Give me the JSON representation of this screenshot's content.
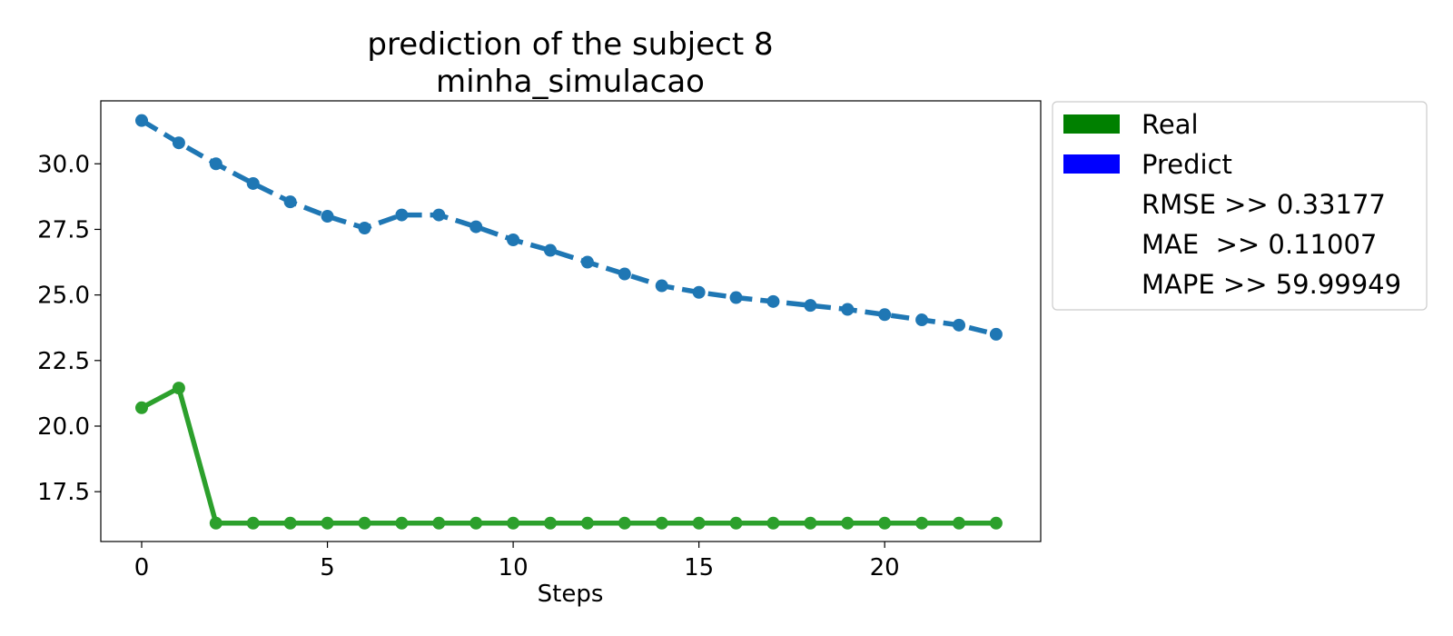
{
  "chart_data": {
    "type": "line",
    "title": "prediction of the subject 8",
    "subtitle": "minha_simulacao",
    "xlabel": "Steps",
    "ylabel": "",
    "xlim": [
      -1.1,
      24.2
    ],
    "ylim": [
      15.6,
      32.4
    ],
    "x_ticks": [
      0,
      5,
      10,
      15,
      20
    ],
    "y_ticks": [
      17.5,
      20.0,
      22.5,
      25.0,
      27.5,
      30.0
    ],
    "y_tick_labels": [
      "17.5",
      "20.0",
      "22.5",
      "25.0",
      "27.5",
      "30.0"
    ],
    "grid": false,
    "legend_position": "outside-top-right",
    "x": [
      0,
      1,
      2,
      3,
      4,
      5,
      6,
      7,
      8,
      9,
      10,
      11,
      12,
      13,
      14,
      15,
      16,
      17,
      18,
      19,
      20,
      21,
      22,
      23
    ],
    "series": [
      {
        "name": "Real",
        "color": "#2ca02c",
        "legend_color": "#008000",
        "style": "solid",
        "values": [
          20.7,
          21.45,
          16.3,
          16.3,
          16.3,
          16.3,
          16.3,
          16.3,
          16.3,
          16.3,
          16.3,
          16.3,
          16.3,
          16.3,
          16.3,
          16.3,
          16.3,
          16.3,
          16.3,
          16.3,
          16.3,
          16.3,
          16.3,
          16.3
        ]
      },
      {
        "name": "Predict",
        "color": "#1f77b4",
        "legend_color": "#0000ff",
        "style": "dashed",
        "values": [
          31.65,
          30.8,
          30.0,
          29.25,
          28.55,
          28.0,
          27.55,
          28.05,
          28.05,
          27.6,
          27.1,
          26.7,
          26.25,
          25.8,
          25.35,
          25.1,
          24.9,
          24.75,
          24.6,
          24.45,
          24.25,
          24.05,
          23.85,
          23.5
        ]
      }
    ],
    "legend_extra": [
      "RMSE >> 0.33177",
      "MAE  >> 0.11007",
      "MAPE >> 59.99949"
    ]
  }
}
